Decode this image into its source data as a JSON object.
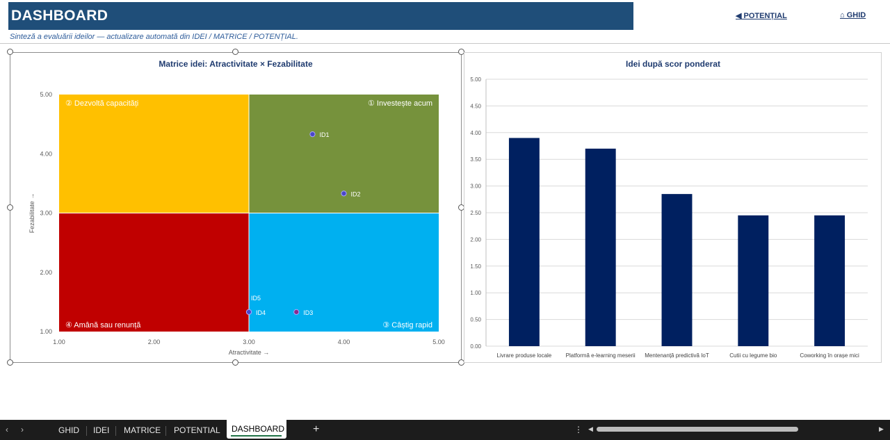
{
  "header": {
    "title": "DASHBOARD",
    "subtitle": "Sinteză a evaluării ideilor — actualizare automată din IDEI / MATRICE / POTENȚIAL.",
    "nav_potential": "◀ POTENȚIAL",
    "nav_ghid": "⌂ GHID"
  },
  "colors": {
    "title_bar": "#1f4e79",
    "q_invest": "#76923c",
    "q_develop": "#ffc000",
    "q_postpone": "#c00000",
    "q_quickwin": "#00b0f0",
    "bar": "#002060",
    "marker": "#4a46c8"
  },
  "chart_data": [
    {
      "type": "scatter",
      "title": "Matrice idei: Atractivitate × Fezabilitate",
      "xlabel": "Atractivitate →",
      "ylabel": "Fezabilitate →",
      "xlim": [
        1,
        5
      ],
      "ylim": [
        1,
        5
      ],
      "x_ticks": [
        "1.00",
        "2.00",
        "3.00",
        "4.00",
        "5.00"
      ],
      "y_ticks": [
        "1.00",
        "2.00",
        "3.00",
        "4.00",
        "5.00"
      ],
      "quadrants": [
        {
          "label": "① Investește acum",
          "color": "#76923c",
          "x": [
            3,
            5
          ],
          "y": [
            3,
            5
          ],
          "corner": "top-right"
        },
        {
          "label": "② Dezvoltă capacități",
          "color": "#ffc000",
          "x": [
            1,
            3
          ],
          "y": [
            3,
            5
          ],
          "corner": "top-left"
        },
        {
          "label": "③ Câștig rapid",
          "color": "#00b0f0",
          "x": [
            3,
            5
          ],
          "y": [
            1,
            3
          ],
          "corner": "bottom-right"
        },
        {
          "label": "④ Amână sau renunță",
          "color": "#c00000",
          "x": [
            1,
            3
          ],
          "y": [
            1,
            3
          ],
          "corner": "bottom-left"
        }
      ],
      "points": [
        {
          "label": "ID1",
          "x": 3.67,
          "y": 4.33,
          "color": "#4a46c8"
        },
        {
          "label": "ID2",
          "x": 4.0,
          "y": 3.33,
          "color": "#4a46c8"
        },
        {
          "label": "ID3",
          "x": 3.5,
          "y": 1.33,
          "color": "#8a2b8c"
        },
        {
          "label": "ID4",
          "x": 3.0,
          "y": 1.33,
          "color": "#4a46c8"
        },
        {
          "label": "ID5",
          "x": 3.0,
          "y": 1.33,
          "color": "#4a46c8"
        }
      ]
    },
    {
      "type": "bar",
      "title": "Idei după scor ponderat",
      "categories": [
        "Livrare produse locale",
        "Platformă e-learning meserii",
        "Mentenanță predictivă IoT",
        "Cutii cu legume bio",
        "Coworking în orașe mici"
      ],
      "values": [
        3.9,
        3.7,
        2.85,
        2.45,
        2.45
      ],
      "ylim": [
        0,
        5
      ],
      "y_ticks": [
        "0.00",
        "0.50",
        "1.00",
        "1.50",
        "2.00",
        "2.50",
        "3.00",
        "3.50",
        "4.00",
        "4.50",
        "5.00"
      ],
      "grid": true,
      "color": "#002060"
    }
  ],
  "tabs": {
    "items": [
      "GHID",
      "IDEI",
      "MATRICE",
      "POTENTIAL"
    ],
    "active": "DASHBOARD",
    "add": "+",
    "prev": "‹",
    "next": "›",
    "more": "⋮",
    "scroll_left": "◀",
    "scroll_right": "▶"
  }
}
